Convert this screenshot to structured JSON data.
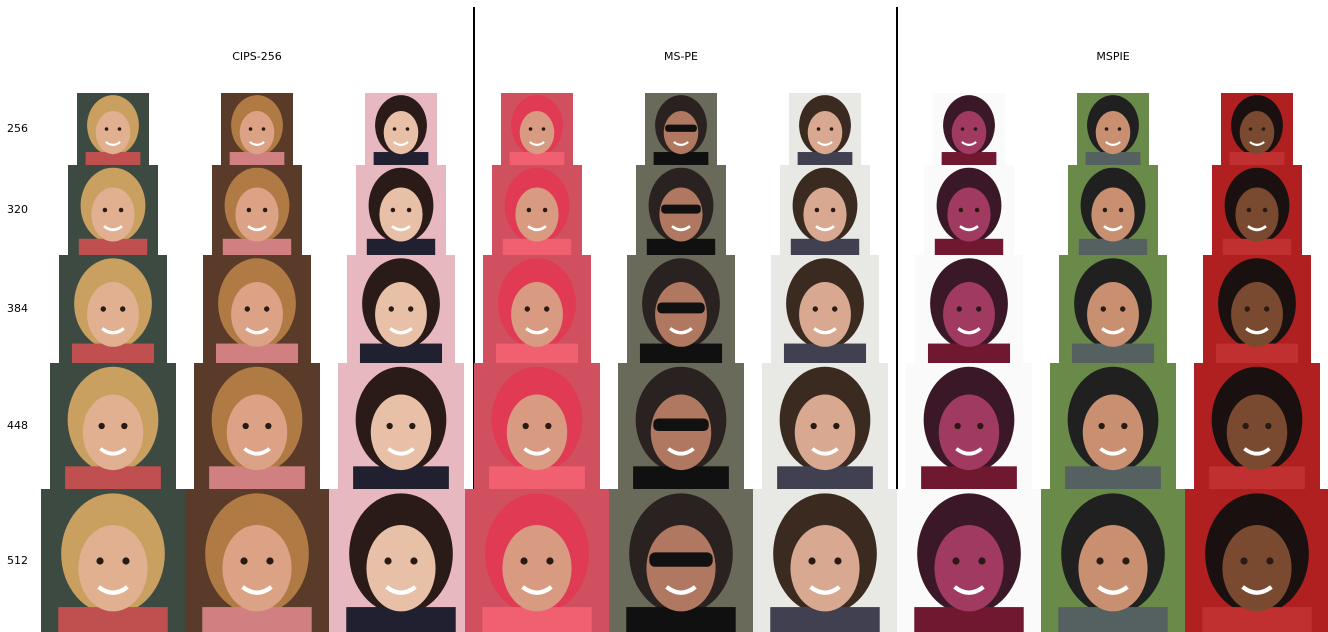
{
  "columns": [
    "CIPS-256",
    "MS-PE",
    "MSPIE"
  ],
  "rows": [
    "256",
    "320",
    "384",
    "448",
    "512"
  ]
}
